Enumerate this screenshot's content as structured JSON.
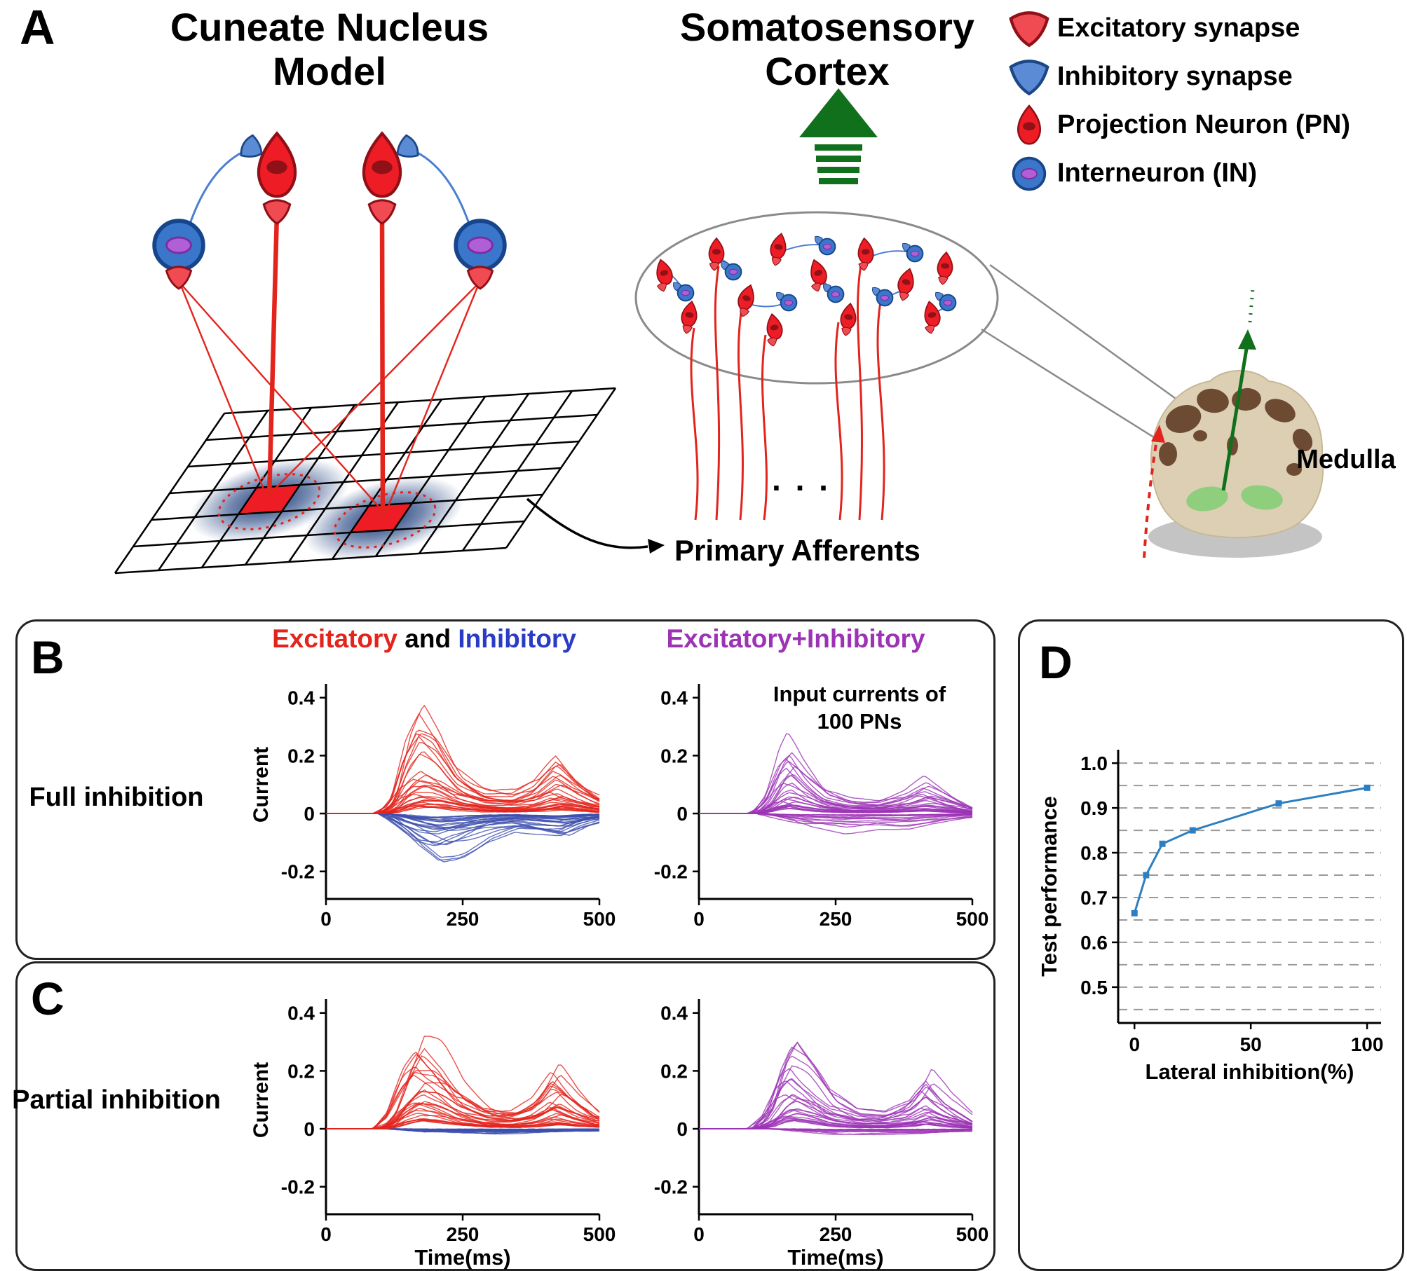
{
  "colors": {
    "excitatory_red": "#e3241d",
    "inhibitory_blue": "#3d4fae",
    "header_blue": "#2b3cc4",
    "sum_purple": "#9c33b5",
    "performance_blue": "#2b7fc2",
    "arrow_green": "#11701c",
    "neuron_red": "#ee1c25",
    "interneuron_blue": "#3a76c9",
    "nucleus_purple": "#b05fd6"
  },
  "panelA": {
    "tag": "A",
    "title_left": "Cuneate Nucleus\nModel",
    "title_center": "Somatosensory\nCortex",
    "legend": {
      "items": [
        {
          "icon": "excitatory-synapse-icon",
          "label": "Excitatory synapse"
        },
        {
          "icon": "inhibitory-synapse-icon",
          "label": "Inhibitory synapse"
        },
        {
          "icon": "projection-neuron-icon",
          "label": "Projection Neuron (PN)"
        },
        {
          "icon": "interneuron-icon",
          "label": "Interneuron (IN)"
        }
      ]
    },
    "primary_afferents": "Primary Afferents",
    "dots": ". . .",
    "medulla": "Medulla"
  },
  "panelB": {
    "tag": "B",
    "row_label": "Full inhibition",
    "header_left": {
      "parts": [
        {
          "text": "Excitatory",
          "color": "#e3241d"
        },
        {
          "text": " and ",
          "color": "#000000"
        },
        {
          "text": "Inhibitory",
          "color": "#2b3cc4"
        }
      ]
    },
    "header_right": {
      "text": "Excitatory+Inhibitory",
      "color": "#9c33b5"
    },
    "annotation": "Input currents of\n100 PNs"
  },
  "panelC": {
    "tag": "C",
    "row_label": "Partial inhibition"
  },
  "panelD": {
    "tag": "D"
  },
  "chart_data": [
    {
      "id": "B_exc_inh",
      "type": "line-ensemble",
      "title": "Full inhibition - Excitatory and Inhibitory input currents",
      "xlabel": "",
      "ylabel": "Current",
      "xlim": [
        0,
        500
      ],
      "ylim": [
        -0.295,
        0.455
      ],
      "xticks": [
        0,
        250,
        500
      ],
      "xtick_labels": [
        "0",
        "250",
        "500"
      ],
      "yticks": [
        0.4,
        0.2,
        0,
        -0.2
      ],
      "ytick_labels": [
        "0.4",
        "0.2",
        "0",
        "-0.2"
      ],
      "series": [
        {
          "name": "Inhibitory",
          "color": "#3d4fae",
          "n_traces": 26,
          "envelope": [
            [
              0,
              0
            ],
            [
              105,
              0
            ],
            [
              135,
              -0.05
            ],
            [
              175,
              -0.12
            ],
            [
              210,
              -0.155
            ],
            [
              250,
              -0.13
            ],
            [
              300,
              -0.08
            ],
            [
              350,
              -0.055
            ],
            [
              395,
              -0.07
            ],
            [
              435,
              -0.085
            ],
            [
              470,
              -0.05
            ],
            [
              500,
              -0.03
            ]
          ]
        },
        {
          "name": "Excitatory",
          "color": "#e3241d",
          "n_traces": 30,
          "envelope": [
            [
              0,
              0
            ],
            [
              95,
              0
            ],
            [
              120,
              0.05
            ],
            [
              145,
              0.22
            ],
            [
              170,
              0.32
            ],
            [
              200,
              0.27
            ],
            [
              240,
              0.15
            ],
            [
              290,
              0.085
            ],
            [
              340,
              0.07
            ],
            [
              380,
              0.1
            ],
            [
              420,
              0.18
            ],
            [
              455,
              0.12
            ],
            [
              500,
              0.06
            ]
          ]
        }
      ]
    },
    {
      "id": "B_sum",
      "type": "line-ensemble",
      "title": "Full inhibition - Excitatory+Inhibitory input currents of 100 PNs",
      "xlabel": "",
      "ylabel": "",
      "xlim": [
        0,
        500
      ],
      "ylim": [
        -0.295,
        0.455
      ],
      "xticks": [
        0,
        250,
        500
      ],
      "xtick_labels": [
        "0",
        "250",
        "500"
      ],
      "yticks": [
        0.4,
        0.2,
        0,
        -0.2
      ],
      "ytick_labels": [
        "0.4",
        "0.2",
        "0",
        "-0.2"
      ],
      "series": [
        {
          "name": "Sum negative part",
          "color": "#9c33b5",
          "n_traces": 12,
          "envelope": [
            [
              0,
              0
            ],
            [
              115,
              0
            ],
            [
              150,
              -0.02
            ],
            [
              200,
              -0.05
            ],
            [
              260,
              -0.065
            ],
            [
              320,
              -0.05
            ],
            [
              380,
              -0.055
            ],
            [
              430,
              -0.04
            ],
            [
              500,
              -0.015
            ]
          ]
        },
        {
          "name": "Excitatory+Inhibitory",
          "color": "#9c33b5",
          "n_traces": 26,
          "envelope": [
            [
              0,
              0
            ],
            [
              100,
              0
            ],
            [
              125,
              0.06
            ],
            [
              150,
              0.19
            ],
            [
              165,
              0.23
            ],
            [
              195,
              0.15
            ],
            [
              230,
              0.08
            ],
            [
              280,
              0.05
            ],
            [
              330,
              0.045
            ],
            [
              380,
              0.07
            ],
            [
              415,
              0.105
            ],
            [
              450,
              0.07
            ],
            [
              500,
              0.02
            ]
          ]
        }
      ]
    },
    {
      "id": "C_exc_inh",
      "type": "line-ensemble",
      "title": "Partial inhibition - Excitatory and Inhibitory input currents",
      "xlabel": "Time(ms)",
      "ylabel": "Current",
      "xlim": [
        0,
        500
      ],
      "ylim": [
        -0.295,
        0.455
      ],
      "xticks": [
        0,
        250,
        500
      ],
      "xtick_labels": [
        "0",
        "250",
        "500"
      ],
      "yticks": [
        0.4,
        0.2,
        0,
        -0.2
      ],
      "ytick_labels": [
        "0.4",
        "0.2",
        "0",
        "-0.2"
      ],
      "series": [
        {
          "name": "Inhibitory",
          "color": "#3d4fae",
          "n_traces": 18,
          "envelope": [
            [
              0,
              0
            ],
            [
              120,
              0
            ],
            [
              180,
              -0.012
            ],
            [
              300,
              -0.016
            ],
            [
              420,
              -0.012
            ],
            [
              500,
              -0.008
            ]
          ]
        },
        {
          "name": "Excitatory",
          "color": "#e3241d",
          "n_traces": 30,
          "envelope": [
            [
              0,
              0
            ],
            [
              95,
              0
            ],
            [
              120,
              0.06
            ],
            [
              150,
              0.24
            ],
            [
              172,
              0.33
            ],
            [
              205,
              0.27
            ],
            [
              245,
              0.15
            ],
            [
              295,
              0.08
            ],
            [
              345,
              0.07
            ],
            [
              385,
              0.11
            ],
            [
              420,
              0.2
            ],
            [
              455,
              0.12
            ],
            [
              500,
              0.05
            ]
          ]
        }
      ]
    },
    {
      "id": "C_sum",
      "type": "line-ensemble",
      "title": "Partial inhibition - Excitatory+Inhibitory input currents of 100 PNs",
      "xlabel": "Time(ms)",
      "ylabel": "",
      "xlim": [
        0,
        500
      ],
      "ylim": [
        -0.295,
        0.455
      ],
      "xticks": [
        0,
        250,
        500
      ],
      "xtick_labels": [
        "0",
        "250",
        "500"
      ],
      "yticks": [
        0.4,
        0.2,
        0,
        -0.2
      ],
      "ytick_labels": [
        "0.4",
        "0.2",
        "0",
        "-0.2"
      ],
      "series": [
        {
          "name": "Sum negative part",
          "color": "#9c33b5",
          "n_traces": 10,
          "envelope": [
            [
              0,
              0
            ],
            [
              130,
              0
            ],
            [
              250,
              -0.02
            ],
            [
              400,
              -0.02
            ],
            [
              500,
              -0.01
            ]
          ]
        },
        {
          "name": "Excitatory+Inhibitory",
          "color": "#9c33b5",
          "n_traces": 26,
          "envelope": [
            [
              0,
              0
            ],
            [
              98,
              0
            ],
            [
              125,
              0.07
            ],
            [
              150,
              0.24
            ],
            [
              168,
              0.31
            ],
            [
              200,
              0.24
            ],
            [
              240,
              0.12
            ],
            [
              290,
              0.06
            ],
            [
              340,
              0.055
            ],
            [
              385,
              0.1
            ],
            [
              415,
              0.19
            ],
            [
              450,
              0.11
            ],
            [
              500,
              0.03
            ]
          ]
        }
      ]
    },
    {
      "id": "D_perf",
      "type": "line",
      "title": "Test performance vs lateral inhibition",
      "xlabel": "Lateral inhibition(%)",
      "ylabel": "Test performance",
      "x": [
        0,
        5,
        12,
        25,
        62,
        100
      ],
      "y": [
        0.665,
        0.75,
        0.82,
        0.85,
        0.91,
        0.945
      ],
      "xlim": [
        -7,
        106
      ],
      "ylim": [
        0.42,
        1.03
      ],
      "xticks": [
        0,
        50,
        100
      ],
      "xtick_labels": [
        "0",
        "50",
        "100"
      ],
      "yticks": [
        0.5,
        0.6,
        0.7,
        0.8,
        0.9,
        1.0
      ],
      "ytick_labels": [
        "0.5",
        "0.6",
        "0.7",
        "0.8",
        "0.9",
        "1.0"
      ],
      "gridlines": {
        "orientation": "horizontal",
        "from": 0.45,
        "to": 1.0,
        "step": 0.05,
        "style": "dashed"
      },
      "legend_position": "none",
      "color": "#2b7fc2",
      "marker": "square"
    }
  ]
}
